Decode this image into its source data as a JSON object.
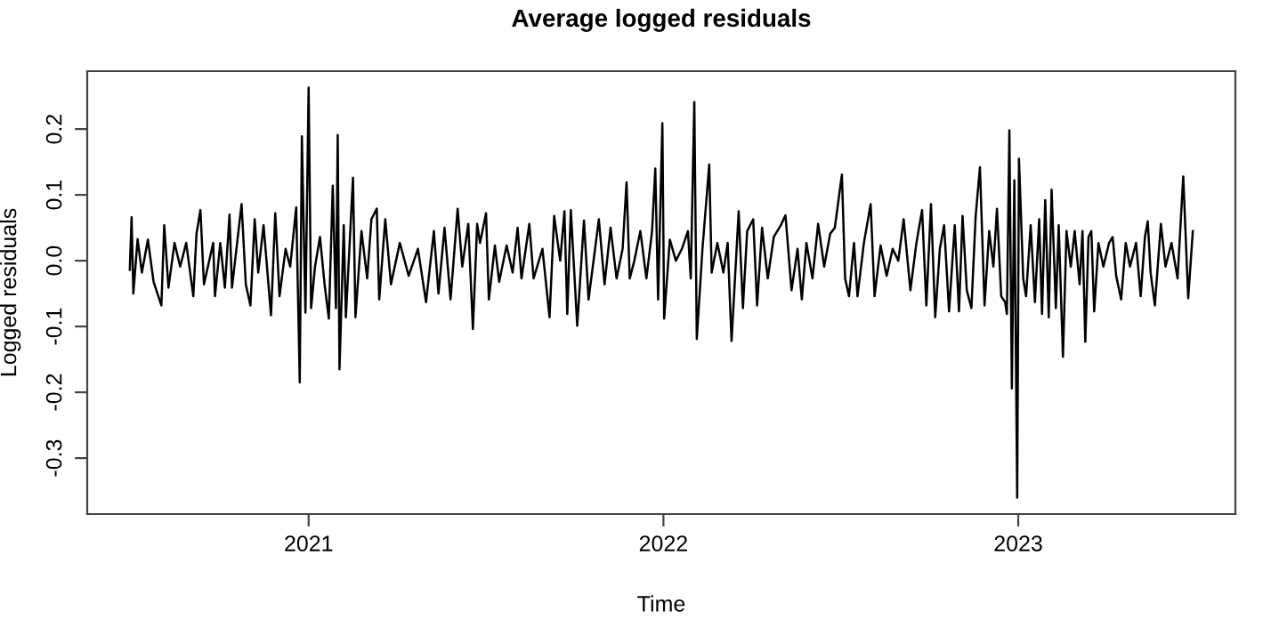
{
  "chart_data": {
    "type": "line",
    "title": "Average logged residuals",
    "xlabel": "Time",
    "ylabel": "Logged residuals",
    "xlim": [
      2020.376,
      2023.612
    ],
    "xticks": [
      2021,
      2022,
      2023
    ],
    "ylim": [
      -0.385,
      0.288
    ],
    "yticks": [
      {
        "value": -0.3,
        "label": "-0.3"
      },
      {
        "value": -0.2,
        "label": "-0.2"
      },
      {
        "value": -0.1,
        "label": "-0.1"
      },
      {
        "value": 0.0,
        "label": "0.0"
      },
      {
        "value": 0.1,
        "label": "0.1"
      },
      {
        "value": 0.2,
        "label": "0.2"
      }
    ],
    "marker": "none",
    "line_style": "solid",
    "series": [
      {
        "color": "#000000",
        "x": [
          2020.496,
          2020.501,
          2020.506,
          2020.518,
          2020.53,
          2020.547,
          2020.563,
          2020.585,
          2020.593,
          2020.605,
          2020.622,
          2020.638,
          2020.655,
          2020.675,
          2020.684,
          2020.695,
          2020.705,
          2020.731,
          2020.736,
          2020.751,
          2020.764,
          2020.777,
          2020.784,
          2020.811,
          2020.823,
          2020.836,
          2020.848,
          2020.858,
          2020.873,
          2020.894,
          2020.906,
          2020.918,
          2020.935,
          2020.948,
          2020.965,
          2020.975,
          2020.981,
          2020.991,
          2021.0,
          2021.007,
          2021.018,
          2021.032,
          2021.045,
          2021.057,
          2021.068,
          2021.077,
          2021.082,
          2021.087,
          2021.099,
          2021.105,
          2021.125,
          2021.132,
          2021.149,
          2021.165,
          2021.177,
          2021.192,
          2021.199,
          2021.216,
          2021.232,
          2021.257,
          2021.282,
          2021.308,
          2021.331,
          2021.353,
          2021.366,
          2021.383,
          2021.4,
          2021.42,
          2021.433,
          2021.45,
          2021.463,
          2021.475,
          2021.483,
          2021.5,
          2021.508,
          2021.525,
          2021.537,
          2021.558,
          2021.575,
          2021.589,
          2021.6,
          2021.622,
          2021.634,
          2021.659,
          2021.679,
          2021.692,
          2021.709,
          2021.721,
          2021.729,
          2021.739,
          2021.757,
          2021.776,
          2021.789,
          2021.818,
          2021.834,
          2021.851,
          2021.868,
          2021.885,
          2021.896,
          2021.905,
          2021.918,
          2021.935,
          2021.952,
          2021.968,
          2021.977,
          2021.985,
          2021.997,
          2022.002,
          2022.018,
          2022.035,
          2022.052,
          2022.069,
          2022.077,
          2022.087,
          2022.094,
          2022.11,
          2022.129,
          2022.136,
          2022.152,
          2022.169,
          2022.181,
          2022.192,
          2022.212,
          2022.224,
          2022.236,
          2022.253,
          2022.264,
          2022.278,
          2022.294,
          2022.311,
          2022.331,
          2022.344,
          2022.361,
          2022.378,
          2022.39,
          2022.403,
          2022.42,
          2022.436,
          2022.453,
          2022.47,
          2022.483,
          2022.503,
          2022.512,
          2022.523,
          2022.537,
          2022.547,
          2022.565,
          2022.584,
          2022.595,
          2022.612,
          2022.629,
          2022.646,
          2022.662,
          2022.677,
          2022.696,
          2022.713,
          2022.729,
          2022.741,
          2022.754,
          2022.766,
          2022.779,
          2022.791,
          2022.805,
          2022.821,
          2022.833,
          2022.843,
          2022.855,
          2022.868,
          2022.88,
          2022.892,
          2022.905,
          2022.918,
          2022.93,
          2022.94,
          2022.952,
          2022.963,
          2022.968,
          2022.975,
          2022.982,
          2022.989,
          2022.997,
          2023.002,
          2023.014,
          2023.022,
          2023.035,
          2023.047,
          2023.059,
          2023.067,
          2023.076,
          2023.086,
          2023.094,
          2023.106,
          2023.114,
          2023.126,
          2023.136,
          2023.148,
          2023.159,
          2023.173,
          2023.181,
          2023.189,
          2023.198,
          2023.206,
          2023.214,
          2023.226,
          2023.24,
          2023.256,
          2023.266,
          2023.276,
          2023.29,
          2023.303,
          2023.315,
          2023.332,
          2023.345,
          2023.357,
          2023.365,
          2023.373,
          2023.385,
          2023.402,
          2023.415,
          2023.432,
          2023.449,
          2023.465,
          2023.479,
          2023.492
        ],
        "values": [
          -0.014,
          0.066,
          -0.05,
          0.033,
          -0.018,
          0.032,
          -0.032,
          -0.068,
          0.054,
          -0.041,
          0.027,
          -0.009,
          0.027,
          -0.054,
          0.041,
          0.077,
          -0.036,
          0.027,
          -0.054,
          0.027,
          -0.041,
          0.07,
          -0.041,
          0.086,
          -0.036,
          -0.068,
          0.063,
          -0.018,
          0.054,
          -0.083,
          0.072,
          -0.054,
          0.018,
          -0.009,
          0.081,
          -0.185,
          0.189,
          -0.079,
          0.263,
          -0.072,
          -0.009,
          0.036,
          -0.036,
          -0.088,
          0.114,
          -0.072,
          0.191,
          -0.165,
          0.054,
          -0.086,
          0.126,
          -0.086,
          0.045,
          -0.027,
          0.063,
          0.079,
          -0.059,
          0.063,
          -0.036,
          0.027,
          -0.023,
          0.018,
          -0.063,
          0.045,
          -0.05,
          0.05,
          -0.059,
          0.079,
          -0.009,
          0.056,
          -0.104,
          0.056,
          0.027,
          0.072,
          -0.059,
          0.023,
          -0.032,
          0.023,
          -0.018,
          0.05,
          -0.027,
          0.056,
          -0.027,
          0.018,
          -0.086,
          0.068,
          0.0,
          0.075,
          -0.081,
          0.077,
          -0.099,
          0.061,
          -0.059,
          0.063,
          -0.036,
          0.05,
          -0.027,
          0.018,
          0.119,
          -0.027,
          0.0,
          0.045,
          -0.027,
          0.045,
          0.14,
          -0.059,
          0.209,
          -0.088,
          0.032,
          0.0,
          0.018,
          0.045,
          -0.027,
          0.241,
          -0.119,
          0.018,
          0.146,
          -0.018,
          0.027,
          -0.018,
          0.027,
          -0.122,
          0.075,
          -0.072,
          0.045,
          0.063,
          -0.068,
          0.05,
          -0.027,
          0.036,
          0.054,
          0.069,
          -0.045,
          0.018,
          -0.059,
          0.027,
          -0.027,
          0.056,
          -0.009,
          0.041,
          0.05,
          0.131,
          -0.027,
          -0.054,
          0.027,
          -0.054,
          0.027,
          0.086,
          -0.054,
          0.023,
          -0.023,
          0.018,
          0.0,
          0.063,
          -0.045,
          0.027,
          0.077,
          -0.068,
          0.086,
          -0.086,
          0.018,
          0.054,
          -0.077,
          0.054,
          -0.077,
          0.068,
          -0.045,
          -0.072,
          0.068,
          0.142,
          -0.068,
          0.045,
          -0.009,
          0.079,
          -0.054,
          -0.063,
          -0.081,
          0.198,
          -0.194,
          0.122,
          -0.36,
          0.155,
          -0.027,
          -0.054,
          0.054,
          -0.063,
          0.063,
          -0.081,
          0.092,
          -0.086,
          0.108,
          -0.072,
          0.054,
          -0.146,
          0.045,
          -0.009,
          0.045,
          -0.036,
          0.045,
          -0.123,
          0.036,
          0.045,
          -0.077,
          0.027,
          -0.009,
          0.027,
          0.036,
          -0.023,
          -0.059,
          0.027,
          -0.009,
          0.027,
          -0.054,
          0.036,
          0.06,
          -0.018,
          -0.068,
          0.056,
          -0.009,
          0.027,
          -0.027,
          0.128,
          -0.057,
          0.045
        ]
      }
    ]
  }
}
